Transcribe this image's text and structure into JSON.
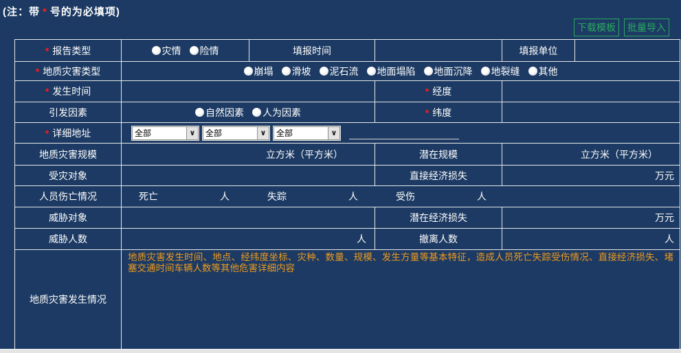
{
  "page": {
    "note_prefix": "(注：带",
    "required_mark": "*",
    "note_suffix": "号的为必填项)"
  },
  "toolbar": {
    "download_template": "下载模板",
    "batch_import": "批量导入"
  },
  "icons": {
    "dropdown_chevron": "∨"
  },
  "form": {
    "report_type": {
      "label": "报告类型",
      "options": [
        "灾情",
        "险情"
      ]
    },
    "fill_time_label": "填报时间",
    "fill_unit_label": "填报单位",
    "disaster_type": {
      "label": "地质灾害类型",
      "options": [
        "崩塌",
        "滑坡",
        "泥石流",
        "地面塌陷",
        "地面沉降",
        "地裂缝",
        "其他"
      ]
    },
    "occur_time_label": "发生时间",
    "longitude_label": "经度",
    "trigger": {
      "label": "引发因素",
      "options": [
        "自然因素",
        "人为因素"
      ]
    },
    "latitude_label": "纬度",
    "address": {
      "label": "详细地址",
      "selects": [
        "全部",
        "全部",
        "全部"
      ]
    },
    "scale": {
      "label": "地质灾害规模",
      "unit": "立方米（平方米）"
    },
    "potential_scale": {
      "label": "潜在规模",
      "unit": "立方米（平方米）"
    },
    "affected_label": "受灾对象",
    "direct_loss": {
      "label": "直接经济损失",
      "unit": "万元"
    },
    "casualties": {
      "label": "人员伤亡情况",
      "death": "死亡",
      "missing": "失踪",
      "injured": "受伤",
      "person_unit": "人"
    },
    "threat_object_label": "威胁对象",
    "potential_loss": {
      "label": "潜在经济损失",
      "unit": "万元"
    },
    "threat_count": {
      "label": "威胁人数",
      "unit": "人"
    },
    "evacuated": {
      "label": "撤离人数",
      "unit": "人"
    },
    "occurrence": {
      "label": "地质灾害发生情况",
      "description": "地质灾害发生时间、地点、经纬度坐标、灾种、数量、规模、发生方量等基本特征，造成人员死亡失踪受伤情况、直接经济损失、堵塞交通时间车辆人数等其他危害详细内容"
    }
  },
  "colors": {
    "background": "#1c3a63",
    "border": "#e9e9e9",
    "accent_green": "#2aa95f",
    "required_red": "#ff1a1a",
    "description_orange": "#ee9a1f"
  }
}
